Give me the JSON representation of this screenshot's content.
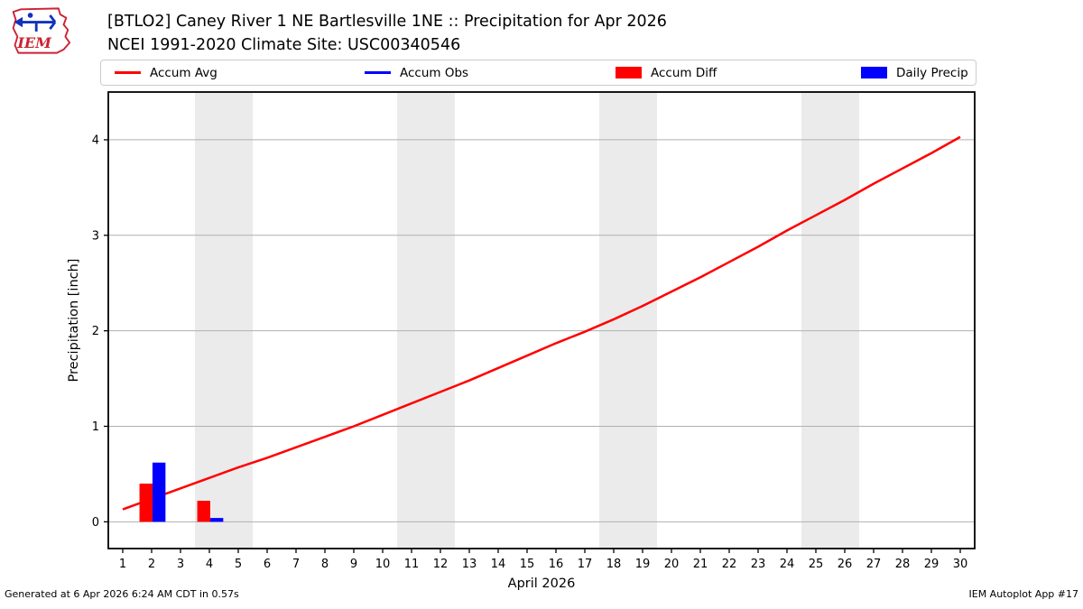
{
  "header": {
    "title_line1": "[BTLO2] Caney River 1 NE Bartlesville 1NE :: Precipitation for Apr 2026",
    "title_line2": "NCEI 1991-2020 Climate Site: USC00340546",
    "logo_text": "IEM"
  },
  "legend": {
    "items": [
      {
        "label": "Accum Avg",
        "marker": "line",
        "color": "#ff0000"
      },
      {
        "label": "Accum Obs",
        "marker": "line",
        "color": "#0000ff"
      },
      {
        "label": "Accum Diff",
        "marker": "box",
        "color": "#ff0000"
      },
      {
        "label": "Daily Precip",
        "marker": "box",
        "color": "#0000ff"
      }
    ]
  },
  "chart_data": {
    "type": "line+bar",
    "title": "[BTLO2] Caney River 1 NE Bartlesville 1NE :: Precipitation for Apr 2026",
    "subtitle": "NCEI 1991-2020 Climate Site: USC00340546",
    "xlabel": "April 2026",
    "ylabel": "Precipitation [inch]",
    "xlim": [
      0.5,
      30.5
    ],
    "ylim": [
      -0.28,
      4.5
    ],
    "x_ticks": [
      1,
      2,
      3,
      4,
      5,
      6,
      7,
      8,
      9,
      10,
      11,
      12,
      13,
      14,
      15,
      16,
      17,
      18,
      19,
      20,
      21,
      22,
      23,
      24,
      25,
      26,
      27,
      28,
      29,
      30
    ],
    "y_ticks": [
      0,
      1,
      2,
      3,
      4
    ],
    "grid": true,
    "grid_color": "#b0b0b0",
    "weekend_band_color": "#ebebeb",
    "weekend_bands_days": [
      [
        3.5,
        5.5
      ],
      [
        10.5,
        12.5
      ],
      [
        17.5,
        19.5
      ],
      [
        24.5,
        26.5
      ]
    ],
    "series": [
      {
        "name": "Accum Avg",
        "type": "line",
        "color": "#ff0000",
        "x": [
          1,
          2,
          3,
          4,
          5,
          6,
          7,
          8,
          9,
          10,
          11,
          12,
          13,
          14,
          15,
          16,
          17,
          18,
          19,
          20,
          21,
          22,
          23,
          24,
          25,
          26,
          27,
          28,
          29,
          30
        ],
        "y": [
          0.13,
          0.24,
          0.35,
          0.46,
          0.57,
          0.67,
          0.78,
          0.89,
          1.0,
          1.12,
          1.24,
          1.36,
          1.48,
          1.61,
          1.74,
          1.87,
          1.99,
          2.12,
          2.26,
          2.41,
          2.56,
          2.72,
          2.88,
          3.05,
          3.21,
          3.37,
          3.54,
          3.7,
          3.86,
          4.03
        ]
      },
      {
        "name": "Accum Diff",
        "type": "bar",
        "color": "#ff0000",
        "x": [
          2,
          4
        ],
        "y": [
          0.4,
          0.22
        ]
      },
      {
        "name": "Daily Precip",
        "type": "bar",
        "color": "#0000ff",
        "x": [
          2,
          4
        ],
        "y": [
          0.62,
          0.04
        ]
      }
    ],
    "legend_position": "top",
    "legend_entries": [
      "Accum Avg",
      "Accum Obs",
      "Accum Diff",
      "Daily Precip"
    ]
  },
  "footer": {
    "left": "Generated at 6 Apr 2026 6:24 AM CDT in 0.57s",
    "right": "IEM Autoplot App #17"
  }
}
